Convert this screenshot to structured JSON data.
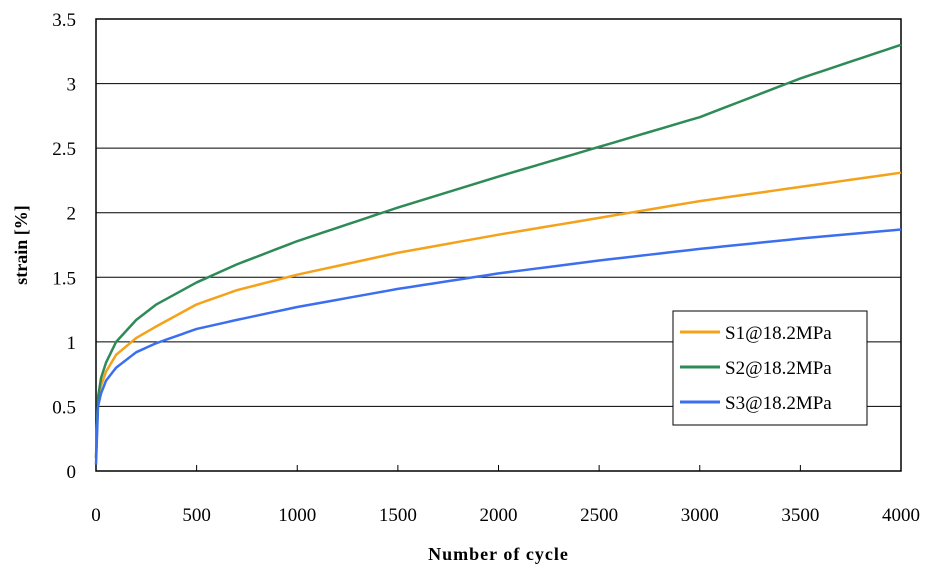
{
  "chart_data": {
    "type": "line",
    "title": "",
    "xlabel": "Number of cycle",
    "ylabel": "strain [%]",
    "xlim": [
      0,
      4000
    ],
    "ylim": [
      0,
      3.5
    ],
    "x_ticks": [
      "0",
      "500",
      "1000",
      "1500",
      "2000",
      "2500",
      "3000",
      "3500",
      "4000"
    ],
    "y_ticks": [
      "0",
      "0.5",
      "1",
      "1.5",
      "2",
      "2.5",
      "3",
      "3.5"
    ],
    "grid": "horizontal",
    "legend_position": "right",
    "series": [
      {
        "name": "S1@18.2MPa",
        "color": "#f5a21b",
        "x": [
          0,
          10,
          25,
          50,
          100,
          200,
          300,
          500,
          700,
          1000,
          1500,
          2000,
          2500,
          3000,
          3500,
          4000
        ],
        "y": [
          0.1,
          0.55,
          0.66,
          0.77,
          0.9,
          1.03,
          1.12,
          1.29,
          1.4,
          1.52,
          1.69,
          1.83,
          1.96,
          2.09,
          2.2,
          2.31
        ]
      },
      {
        "name": "S2@18.2MPa",
        "color": "#2e8b57",
        "x": [
          0,
          10,
          25,
          50,
          100,
          200,
          300,
          500,
          700,
          1000,
          1500,
          2000,
          2500,
          3000,
          3500,
          4000
        ],
        "y": [
          0.1,
          0.57,
          0.72,
          0.84,
          1.0,
          1.17,
          1.29,
          1.46,
          1.6,
          1.78,
          2.04,
          2.28,
          2.51,
          2.74,
          3.04,
          3.3
        ]
      },
      {
        "name": "S3@18.2MPa",
        "color": "#3b6ff0",
        "x": [
          0,
          10,
          25,
          50,
          100,
          200,
          300,
          500,
          700,
          1000,
          1500,
          2000,
          2500,
          3000,
          3500,
          4000
        ],
        "y": [
          0.05,
          0.5,
          0.6,
          0.7,
          0.8,
          0.92,
          0.99,
          1.1,
          1.17,
          1.27,
          1.41,
          1.53,
          1.63,
          1.72,
          1.8,
          1.87
        ]
      }
    ]
  }
}
